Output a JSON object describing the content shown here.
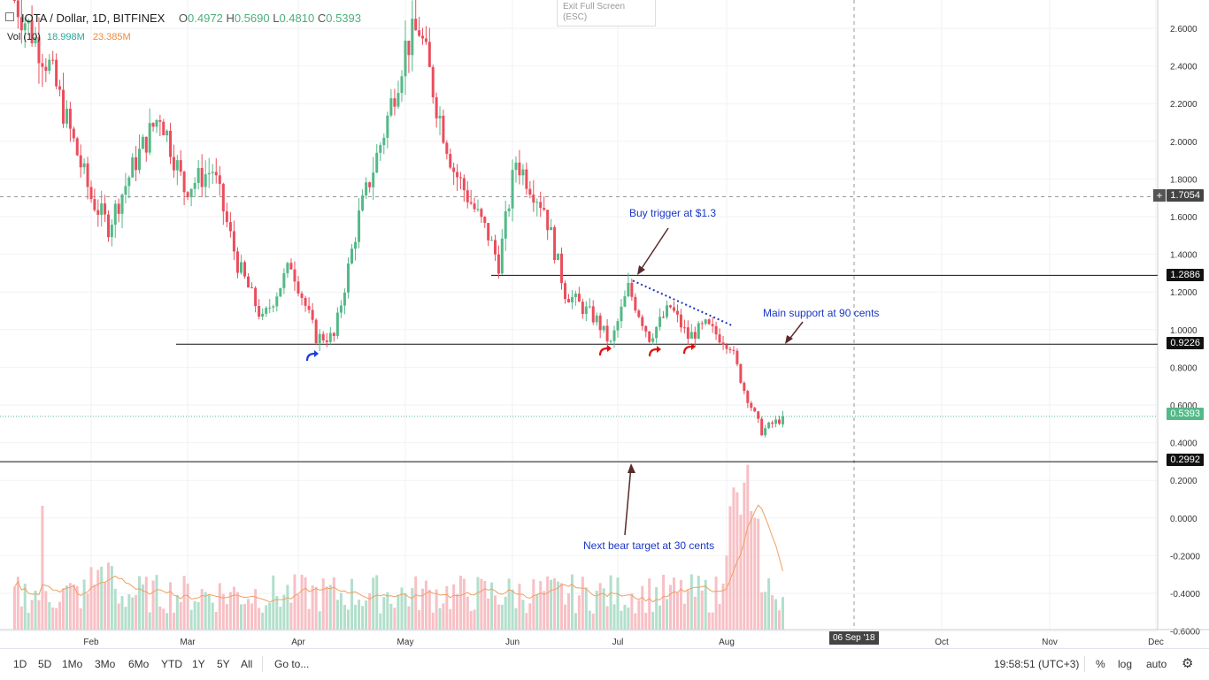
{
  "header": {
    "symbol": "IOTA / Dollar, 1D, BITFINEX",
    "open_label": "O",
    "open": "0.4972",
    "high_label": "H",
    "high": "0.5690",
    "low_label": "L",
    "low": "0.4810",
    "close_label": "C",
    "close": "0.5393"
  },
  "volume_header": {
    "label": "Vol (10)",
    "value1": "18.998M",
    "value2": "23.385M"
  },
  "exit_fullscreen": {
    "line1": "Exit Full Screen",
    "line2": "(ESC)"
  },
  "price_tags": {
    "p1705": "1.7054",
    "p1288": "1.2886",
    "p0922": "0.9226",
    "p0539": "0.5393",
    "p0299": "0.2992"
  },
  "annotations": {
    "buy_trigger": "Buy trigger at $1.3",
    "main_support": "Main support at 90 cents",
    "bear_target": "Next bear target at 30 cents"
  },
  "date_badge": "06 Sep '18",
  "bottom": {
    "timeframes": [
      "1D",
      "5D",
      "1Mo",
      "3Mo",
      "6Mo",
      "YTD",
      "1Y",
      "5Y",
      "All"
    ],
    "goto": "Go to...",
    "clock": "19:58:51 (UTC+3)",
    "percent": "%",
    "log": "log",
    "auto": "auto"
  },
  "colors": {
    "up": "#53b987",
    "down": "#eb4d5c",
    "up_vol": "#b2dfcc",
    "down_vol": "#f7c0c5",
    "ma": "#f0a060",
    "annotation": "#1a37c7"
  },
  "chart_data": {
    "type": "candlestick",
    "title": "IOTA / Dollar, 1D, BITFINEX",
    "ylim": [
      -0.6,
      2.7
    ],
    "y_ticks": [
      "2.6000",
      "2.4000",
      "2.2000",
      "2.0000",
      "1.8000",
      "1.6000",
      "1.4000",
      "1.2000",
      "1.0000",
      "0.8000",
      "0.6000",
      "0.4000",
      "0.2000",
      "0.0000",
      "-0.2000",
      "-0.4000",
      "-0.6000"
    ],
    "x_ticks": [
      "Feb",
      "Mar",
      "Apr",
      "May",
      "Jun",
      "Jul",
      "Aug",
      "Oct",
      "Nov",
      "Dec"
    ],
    "levels": [
      {
        "price": 1.2886,
        "type": "resistance"
      },
      {
        "price": 0.9226,
        "type": "support"
      },
      {
        "price": 0.2992,
        "type": "target"
      }
    ],
    "last_close": 0.5393,
    "anchors": [
      {
        "date": "Jan 10",
        "price": 2.75
      },
      {
        "date": "Jan 20",
        "price": 2.4
      },
      {
        "date": "Feb 1",
        "price": 1.7
      },
      {
        "date": "Feb 6",
        "price": 1.55
      },
      {
        "date": "Feb 14",
        "price": 1.9
      },
      {
        "date": "Feb 21",
        "price": 2.15
      },
      {
        "date": "Feb 28",
        "price": 1.75
      },
      {
        "date": "Mar 8",
        "price": 1.85
      },
      {
        "date": "Mar 15",
        "price": 1.35
      },
      {
        "date": "Mar 22",
        "price": 1.05
      },
      {
        "date": "Mar 30",
        "price": 1.35
      },
      {
        "date": "Apr 6",
        "price": 0.96
      },
      {
        "date": "Apr 11",
        "price": 0.96
      },
      {
        "date": "Apr 18",
        "price": 1.6
      },
      {
        "date": "Apr 25",
        "price": 2.05
      },
      {
        "date": "May 1",
        "price": 2.5
      },
      {
        "date": "May 5",
        "price": 2.6
      },
      {
        "date": "May 10",
        "price": 2.2
      },
      {
        "date": "May 15",
        "price": 1.85
      },
      {
        "date": "May 25",
        "price": 1.5
      },
      {
        "date": "May 28",
        "price": 1.35
      },
      {
        "date": "Jun 2",
        "price": 1.9
      },
      {
        "date": "Jun 10",
        "price": 1.65
      },
      {
        "date": "Jun 16",
        "price": 1.2
      },
      {
        "date": "Jun 25",
        "price": 1.05
      },
      {
        "date": "Jun 29",
        "price": 0.92
      },
      {
        "date": "Jul 4",
        "price": 1.22
      },
      {
        "date": "Jul 10",
        "price": 0.96
      },
      {
        "date": "Jul 16",
        "price": 1.12
      },
      {
        "date": "Jul 21",
        "price": 0.96
      },
      {
        "date": "Jul 26",
        "price": 1.02
      },
      {
        "date": "Aug 2",
        "price": 0.92
      },
      {
        "date": "Aug 6",
        "price": 0.68
      },
      {
        "date": "Aug 11",
        "price": 0.46
      },
      {
        "date": "Aug 14",
        "price": 0.5
      },
      {
        "date": "Aug 18",
        "price": 0.54
      }
    ]
  }
}
